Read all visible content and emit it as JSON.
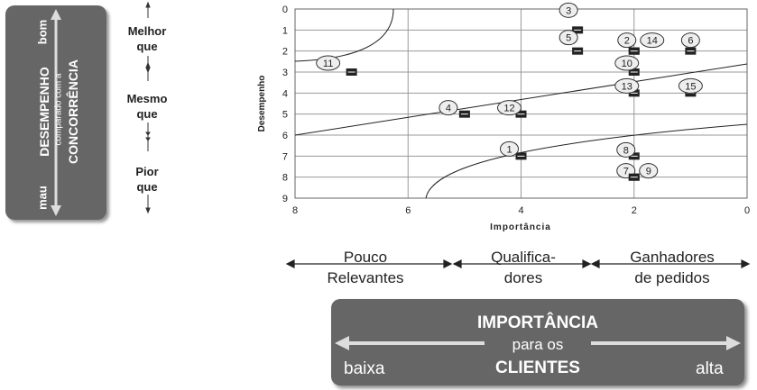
{
  "left_panel": {
    "good_label": "bom",
    "bad_label": "mau",
    "title_main": "DESEMPENHO",
    "title_sub": "comparado com a",
    "title_end": "CONCORRÊNCIA"
  },
  "comparison": {
    "better_1": "Melhor",
    "better_2": "que",
    "same_1": "Mesmo",
    "same_2": "que",
    "worse_1": "Pior",
    "worse_2": "que"
  },
  "categories": {
    "low_1": "Pouco",
    "low_2": "Relevantes",
    "mid_1": "Qualifica-",
    "mid_2": "dores",
    "high_1": "Ganhadores",
    "high_2": "de pedidos"
  },
  "bottom_panel": {
    "title": "IMPORTÂNCIA",
    "sub": "para os",
    "end": "CLIENTES",
    "low": "baixa",
    "high": "alta"
  },
  "chart_data": {
    "type": "scatter",
    "xlabel": "Importância",
    "ylabel": "Desempenho",
    "xlim": [
      8,
      0
    ],
    "ylim": [
      9,
      0
    ],
    "x_ticks": [
      8,
      6,
      4,
      2,
      0
    ],
    "y_ticks": [
      0,
      1,
      2,
      3,
      4,
      5,
      6,
      7,
      8,
      9
    ],
    "grid": true,
    "points": [
      {
        "label": "1",
        "x": 4,
        "y": 7
      },
      {
        "label": "2",
        "x": 2,
        "y": 2
      },
      {
        "label": "3",
        "x": 3,
        "y": 1
      },
      {
        "label": "4",
        "x": 5,
        "y": 5
      },
      {
        "label": "5",
        "x": 3,
        "y": 2
      },
      {
        "label": "6",
        "x": 1,
        "y": 2
      },
      {
        "label": "7",
        "x": 2,
        "y": 8
      },
      {
        "label": "8",
        "x": 2,
        "y": 7
      },
      {
        "label": "9",
        "x": 2,
        "y": 8
      },
      {
        "label": "10",
        "x": 2,
        "y": 3
      },
      {
        "label": "11",
        "x": 7,
        "y": 3
      },
      {
        "label": "12",
        "x": 4,
        "y": 5
      },
      {
        "label": "13",
        "x": 2,
        "y": 4
      },
      {
        "label": "14",
        "x": 2,
        "y": 2
      },
      {
        "label": "15",
        "x": 1,
        "y": 4
      }
    ]
  }
}
